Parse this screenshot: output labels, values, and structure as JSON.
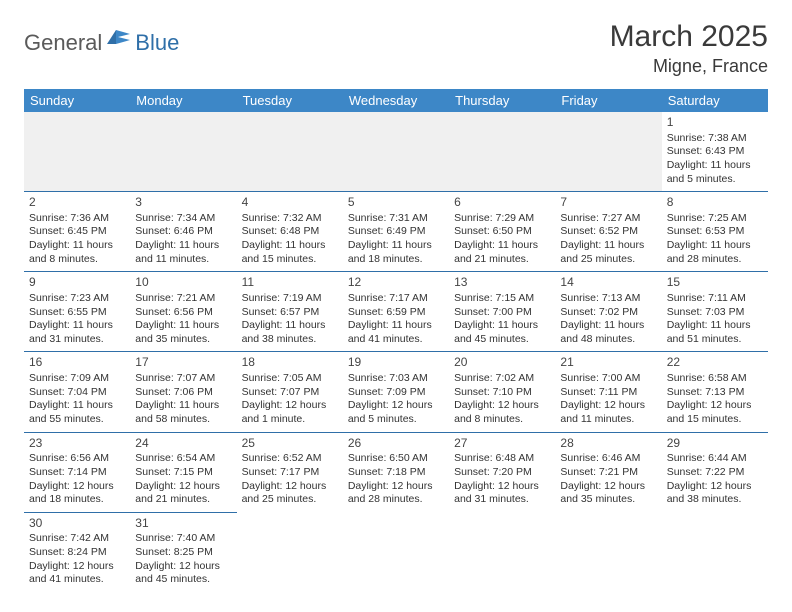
{
  "logo": {
    "general": "General",
    "blue": "Blue"
  },
  "title": "March 2025",
  "location": "Migne, France",
  "header_bg": "#3d87c7",
  "border_color": "#2f6fa8",
  "weekdays": [
    "Sunday",
    "Monday",
    "Tuesday",
    "Wednesday",
    "Thursday",
    "Friday",
    "Saturday"
  ],
  "weeks": [
    [
      null,
      null,
      null,
      null,
      null,
      null,
      {
        "d": "1",
        "sr": "Sunrise: 7:38 AM",
        "ss": "Sunset: 6:43 PM",
        "dl": "Daylight: 11 hours and 5 minutes."
      }
    ],
    [
      {
        "d": "2",
        "sr": "Sunrise: 7:36 AM",
        "ss": "Sunset: 6:45 PM",
        "dl": "Daylight: 11 hours and 8 minutes."
      },
      {
        "d": "3",
        "sr": "Sunrise: 7:34 AM",
        "ss": "Sunset: 6:46 PM",
        "dl": "Daylight: 11 hours and 11 minutes."
      },
      {
        "d": "4",
        "sr": "Sunrise: 7:32 AM",
        "ss": "Sunset: 6:48 PM",
        "dl": "Daylight: 11 hours and 15 minutes."
      },
      {
        "d": "5",
        "sr": "Sunrise: 7:31 AM",
        "ss": "Sunset: 6:49 PM",
        "dl": "Daylight: 11 hours and 18 minutes."
      },
      {
        "d": "6",
        "sr": "Sunrise: 7:29 AM",
        "ss": "Sunset: 6:50 PM",
        "dl": "Daylight: 11 hours and 21 minutes."
      },
      {
        "d": "7",
        "sr": "Sunrise: 7:27 AM",
        "ss": "Sunset: 6:52 PM",
        "dl": "Daylight: 11 hours and 25 minutes."
      },
      {
        "d": "8",
        "sr": "Sunrise: 7:25 AM",
        "ss": "Sunset: 6:53 PM",
        "dl": "Daylight: 11 hours and 28 minutes."
      }
    ],
    [
      {
        "d": "9",
        "sr": "Sunrise: 7:23 AM",
        "ss": "Sunset: 6:55 PM",
        "dl": "Daylight: 11 hours and 31 minutes."
      },
      {
        "d": "10",
        "sr": "Sunrise: 7:21 AM",
        "ss": "Sunset: 6:56 PM",
        "dl": "Daylight: 11 hours and 35 minutes."
      },
      {
        "d": "11",
        "sr": "Sunrise: 7:19 AM",
        "ss": "Sunset: 6:57 PM",
        "dl": "Daylight: 11 hours and 38 minutes."
      },
      {
        "d": "12",
        "sr": "Sunrise: 7:17 AM",
        "ss": "Sunset: 6:59 PM",
        "dl": "Daylight: 11 hours and 41 minutes."
      },
      {
        "d": "13",
        "sr": "Sunrise: 7:15 AM",
        "ss": "Sunset: 7:00 PM",
        "dl": "Daylight: 11 hours and 45 minutes."
      },
      {
        "d": "14",
        "sr": "Sunrise: 7:13 AM",
        "ss": "Sunset: 7:02 PM",
        "dl": "Daylight: 11 hours and 48 minutes."
      },
      {
        "d": "15",
        "sr": "Sunrise: 7:11 AM",
        "ss": "Sunset: 7:03 PM",
        "dl": "Daylight: 11 hours and 51 minutes."
      }
    ],
    [
      {
        "d": "16",
        "sr": "Sunrise: 7:09 AM",
        "ss": "Sunset: 7:04 PM",
        "dl": "Daylight: 11 hours and 55 minutes."
      },
      {
        "d": "17",
        "sr": "Sunrise: 7:07 AM",
        "ss": "Sunset: 7:06 PM",
        "dl": "Daylight: 11 hours and 58 minutes."
      },
      {
        "d": "18",
        "sr": "Sunrise: 7:05 AM",
        "ss": "Sunset: 7:07 PM",
        "dl": "Daylight: 12 hours and 1 minute."
      },
      {
        "d": "19",
        "sr": "Sunrise: 7:03 AM",
        "ss": "Sunset: 7:09 PM",
        "dl": "Daylight: 12 hours and 5 minutes."
      },
      {
        "d": "20",
        "sr": "Sunrise: 7:02 AM",
        "ss": "Sunset: 7:10 PM",
        "dl": "Daylight: 12 hours and 8 minutes."
      },
      {
        "d": "21",
        "sr": "Sunrise: 7:00 AM",
        "ss": "Sunset: 7:11 PM",
        "dl": "Daylight: 12 hours and 11 minutes."
      },
      {
        "d": "22",
        "sr": "Sunrise: 6:58 AM",
        "ss": "Sunset: 7:13 PM",
        "dl": "Daylight: 12 hours and 15 minutes."
      }
    ],
    [
      {
        "d": "23",
        "sr": "Sunrise: 6:56 AM",
        "ss": "Sunset: 7:14 PM",
        "dl": "Daylight: 12 hours and 18 minutes."
      },
      {
        "d": "24",
        "sr": "Sunrise: 6:54 AM",
        "ss": "Sunset: 7:15 PM",
        "dl": "Daylight: 12 hours and 21 minutes."
      },
      {
        "d": "25",
        "sr": "Sunrise: 6:52 AM",
        "ss": "Sunset: 7:17 PM",
        "dl": "Daylight: 12 hours and 25 minutes."
      },
      {
        "d": "26",
        "sr": "Sunrise: 6:50 AM",
        "ss": "Sunset: 7:18 PM",
        "dl": "Daylight: 12 hours and 28 minutes."
      },
      {
        "d": "27",
        "sr": "Sunrise: 6:48 AM",
        "ss": "Sunset: 7:20 PM",
        "dl": "Daylight: 12 hours and 31 minutes."
      },
      {
        "d": "28",
        "sr": "Sunrise: 6:46 AM",
        "ss": "Sunset: 7:21 PM",
        "dl": "Daylight: 12 hours and 35 minutes."
      },
      {
        "d": "29",
        "sr": "Sunrise: 6:44 AM",
        "ss": "Sunset: 7:22 PM",
        "dl": "Daylight: 12 hours and 38 minutes."
      }
    ],
    [
      {
        "d": "30",
        "sr": "Sunrise: 7:42 AM",
        "ss": "Sunset: 8:24 PM",
        "dl": "Daylight: 12 hours and 41 minutes."
      },
      {
        "d": "31",
        "sr": "Sunrise: 7:40 AM",
        "ss": "Sunset: 8:25 PM",
        "dl": "Daylight: 12 hours and 45 minutes."
      },
      null,
      null,
      null,
      null,
      null
    ]
  ]
}
